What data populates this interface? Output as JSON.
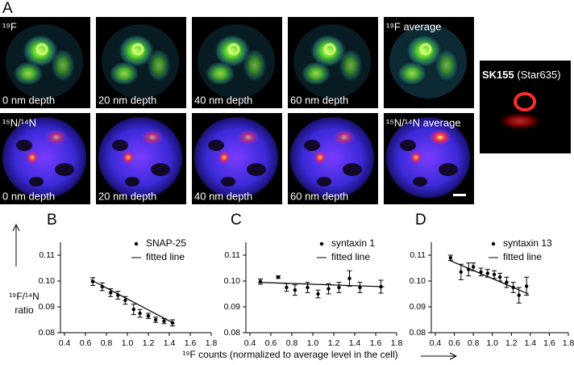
{
  "figure_label": "A",
  "images": [
    {
      "tag": "¹⁹F",
      "caption": "0 nm depth"
    },
    {
      "caption": "20 nm depth"
    },
    {
      "caption": "40 nm depth"
    },
    {
      "caption": "60 nm depth"
    },
    {
      "tag": "¹⁹F average"
    },
    {
      "tag": "¹⁵N/¹⁴N",
      "caption": "0 nm depth"
    },
    {
      "caption": "20 nm depth"
    },
    {
      "caption": "40 nm depth"
    },
    {
      "caption": "60 nm depth"
    },
    {
      "tag": "¹⁵N/¹⁴N average"
    }
  ],
  "stain": {
    "name": "SK155",
    "dye": "(Star635)"
  },
  "ylabel": "¹⁹F/¹⁴N",
  "ylabel2": "ratio",
  "xlabel": "¹⁹F counts (normalized to average level in the cell)",
  "chart_data": [
    {
      "type": "scatter",
      "label": "B",
      "series": [
        {
          "name": "SNAP-25",
          "color": "#000000",
          "x": [
            0.67,
            0.76,
            0.84,
            0.91,
            0.98,
            1.06,
            1.12,
            1.2,
            1.27,
            1.35,
            1.43
          ],
          "values": [
            0.0998,
            0.0978,
            0.0955,
            0.0945,
            0.0925,
            0.089,
            0.0875,
            0.0865,
            0.085,
            0.0845,
            0.0838
          ],
          "errors": [
            0.0015,
            0.0015,
            0.0015,
            0.0015,
            0.0015,
            0.002,
            0.0015,
            0.001,
            0.001,
            0.001,
            0.0012
          ]
        },
        {
          "name": "fitted line",
          "color": "#000000",
          "mode": "line",
          "x": [
            0.65,
            1.45
          ],
          "values": [
            0.1005,
            0.0835
          ]
        }
      ],
      "xlim": [
        0.4,
        1.8
      ],
      "xticks": [
        0.4,
        0.6,
        0.8,
        {
          "value": 1,
          "label": "1.0"
        },
        1.2,
        1.4,
        1.6,
        1.8
      ],
      "ylim": [
        0.08,
        0.115
      ],
      "yticks": [
        0.08,
        0.09,
        {
          "value": 0.1,
          "label": "0.10"
        },
        0.11
      ]
    },
    {
      "type": "scatter",
      "label": "C",
      "series": [
        {
          "name": "syntaxin 1",
          "color": "#000000",
          "x": [
            0.5,
            0.67,
            0.75,
            0.83,
            0.95,
            1.05,
            1.15,
            1.25,
            1.35,
            1.45,
            1.65
          ],
          "values": [
            0.0998,
            0.1015,
            0.0975,
            0.0965,
            0.0975,
            0.095,
            0.097,
            0.0975,
            0.101,
            0.0975,
            0.0978
          ],
          "errors": [
            0.001,
            0.0005,
            0.0015,
            0.002,
            0.002,
            0.0015,
            0.002,
            0.002,
            0.003,
            0.002,
            0.0025
          ]
        },
        {
          "name": "fitted line",
          "color": "#000000",
          "mode": "line",
          "x": [
            0.48,
            1.68
          ],
          "values": [
            0.0995,
            0.0978
          ]
        }
      ],
      "xlim": [
        0.4,
        1.8
      ],
      "xticks": [
        0.4,
        0.6,
        0.8,
        {
          "value": 1,
          "label": "1.0"
        },
        1.2,
        1.4,
        1.6,
        1.8
      ],
      "ylim": [
        0.08,
        0.115
      ],
      "yticks": [
        0.08,
        0.09,
        {
          "value": 0.1,
          "label": "0.10"
        },
        0.11
      ]
    },
    {
      "type": "scatter",
      "label": "D",
      "series": [
        {
          "name": "syntaxin 13",
          "color": "#000000",
          "x": [
            0.56,
            0.67,
            0.75,
            0.8,
            0.88,
            0.95,
            1.02,
            1.08,
            1.15,
            1.22,
            1.28,
            1.36
          ],
          "values": [
            0.109,
            0.1035,
            0.1045,
            0.1055,
            0.1035,
            0.103,
            0.1025,
            0.1015,
            0.0995,
            0.0975,
            0.0945,
            0.098
          ],
          "errors": [
            0.001,
            0.003,
            0.0025,
            0.0015,
            0.0015,
            0.0015,
            0.0015,
            0.0015,
            0.002,
            0.002,
            0.003,
            0.0035
          ]
        },
        {
          "name": "fitted line",
          "color": "#000000",
          "mode": "line",
          "x": [
            0.55,
            1.38
          ],
          "values": [
            0.108,
            0.095
          ]
        }
      ],
      "xlim": [
        0.4,
        1.8
      ],
      "xticks": [
        0.4,
        0.6,
        0.8,
        {
          "value": 1,
          "label": "1.0"
        },
        1.2,
        1.4,
        1.6,
        1.8
      ],
      "ylim": [
        0.08,
        0.115
      ],
      "yticks": [
        0.08,
        0.09,
        {
          "value": 0.1,
          "label": "0.10"
        },
        0.11
      ]
    }
  ]
}
